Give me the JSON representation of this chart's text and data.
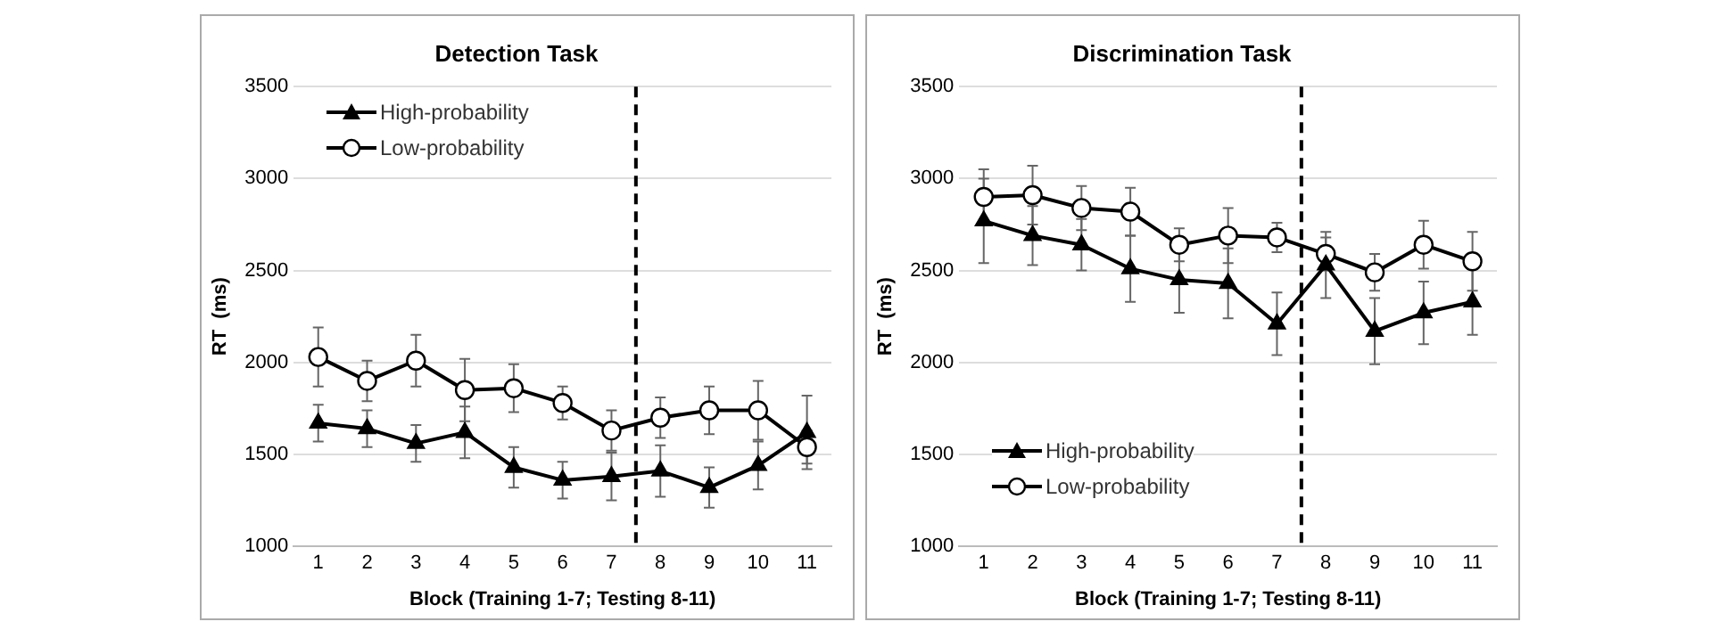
{
  "chart_data": [
    {
      "type": "line",
      "title": "Detection Task",
      "xlabel": "Block (Training 1-7; Testing 8-11)",
      "ylabel": "RT  (ms)",
      "x": [
        1,
        2,
        3,
        4,
        5,
        6,
        7,
        8,
        9,
        10,
        11
      ],
      "xlim": [
        0.5,
        11.5
      ],
      "xticks": [
        1,
        2,
        3,
        4,
        5,
        6,
        7,
        8,
        9,
        10,
        11
      ],
      "ylim": [
        1000,
        3500
      ],
      "yticks": [
        1000,
        1500,
        2000,
        2500,
        3000,
        3500
      ],
      "grid": "y",
      "legend": "top left",
      "line_style": "solid",
      "series": [
        {
          "name": "High-probability",
          "color": "#000000",
          "marker": "triangle",
          "values": [
            1670,
            1640,
            1560,
            1620,
            1430,
            1360,
            1380,
            1410,
            1320,
            1440,
            1620
          ],
          "errors": [
            100,
            100,
            100,
            140,
            110,
            100,
            130,
            140,
            110,
            130,
            200
          ]
        },
        {
          "name": "Low-probability",
          "color": "#000000",
          "marker": "circle",
          "values": [
            2030,
            1900,
            2010,
            1850,
            1860,
            1780,
            1630,
            1700,
            1740,
            1740,
            1540
          ],
          "errors": [
            160,
            110,
            140,
            170,
            130,
            90,
            110,
            110,
            130,
            160,
            90
          ]
        }
      ],
      "ref_lines": [
        {
          "axis": "x",
          "value": 7.5,
          "color": "#000000",
          "line_style": "dashed"
        }
      ]
    },
    {
      "type": "line",
      "title": "Discrimination Task",
      "xlabel": "Block (Training 1-7; Testing 8-11)",
      "ylabel": "RT  (ms)",
      "x": [
        1,
        2,
        3,
        4,
        5,
        6,
        7,
        8,
        9,
        10,
        11
      ],
      "xlim": [
        0.5,
        11.5
      ],
      "xticks": [
        1,
        2,
        3,
        4,
        5,
        6,
        7,
        8,
        9,
        10,
        11
      ],
      "ylim": [
        1000,
        3500
      ],
      "yticks": [
        1000,
        1500,
        2000,
        2500,
        3000,
        3500
      ],
      "grid": "y",
      "legend": "bottom left",
      "line_style": "solid",
      "series": [
        {
          "name": "High-probability",
          "color": "#000000",
          "marker": "triangle",
          "values": [
            2770,
            2690,
            2640,
            2510,
            2450,
            2430,
            2210,
            2530,
            2170,
            2270,
            2330
          ],
          "errors": [
            230,
            160,
            140,
            180,
            180,
            190,
            170,
            180,
            180,
            170,
            180
          ]
        },
        {
          "name": "Low-probability",
          "color": "#000000",
          "marker": "circle",
          "values": [
            2900,
            2910,
            2840,
            2820,
            2640,
            2690,
            2680,
            2590,
            2490,
            2640,
            2550
          ],
          "errors": [
            150,
            160,
            120,
            130,
            90,
            150,
            80,
            90,
            100,
            130,
            160
          ]
        }
      ],
      "ref_lines": [
        {
          "axis": "x",
          "value": 7.5,
          "color": "#000000",
          "line_style": "dashed"
        }
      ]
    }
  ]
}
